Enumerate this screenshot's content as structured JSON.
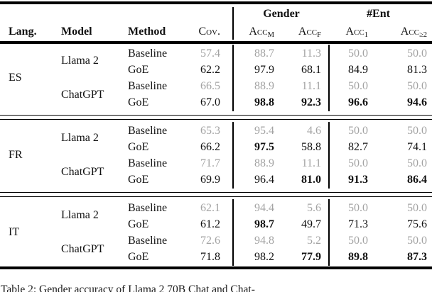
{
  "table": {
    "headers": {
      "lang": "Lang.",
      "model": "Model",
      "method": "Method",
      "cov": "Cov.",
      "group_gender": "Gender",
      "group_ent": "#Ent",
      "acc": "Acc",
      "sub_m": "M",
      "sub_f": "F",
      "sub_1": "1",
      "sub_ge2": "≥2"
    },
    "sections": [
      {
        "lang": "ES",
        "models": [
          "Llama 2",
          "ChatGPT"
        ],
        "rows": [
          {
            "method": "Baseline",
            "cov": "57.4",
            "accM": "88.7",
            "accF": "11.3",
            "acc1": "50.0",
            "acc2": "50.0"
          },
          {
            "method": "GoE",
            "cov": "62.2",
            "accM": "97.9",
            "accF": "68.1",
            "acc1": "84.9",
            "acc2": "81.3"
          },
          {
            "method": "Baseline",
            "cov": "66.5",
            "accM": "88.9",
            "accF": "11.1",
            "acc1": "50.0",
            "acc2": "50.0"
          },
          {
            "method": "GoE",
            "cov": "67.0",
            "accM": "98.8",
            "accF": "92.3",
            "acc1": "96.6",
            "acc2": "94.6"
          }
        ]
      },
      {
        "lang": "FR",
        "models": [
          "Llama 2",
          "ChatGPT"
        ],
        "rows": [
          {
            "method": "Baseline",
            "cov": "65.3",
            "accM": "95.4",
            "accF": "4.6",
            "acc1": "50.0",
            "acc2": "50.0"
          },
          {
            "method": "GoE",
            "cov": "66.2",
            "accM": "97.5",
            "accF": "58.8",
            "acc1": "82.7",
            "acc2": "74.1"
          },
          {
            "method": "Baseline",
            "cov": "71.7",
            "accM": "88.9",
            "accF": "11.1",
            "acc1": "50.0",
            "acc2": "50.0"
          },
          {
            "method": "GoE",
            "cov": "69.9",
            "accM": "96.4",
            "accF": "81.0",
            "acc1": "91.3",
            "acc2": "86.4"
          }
        ]
      },
      {
        "lang": "IT",
        "models": [
          "Llama 2",
          "ChatGPT"
        ],
        "rows": [
          {
            "method": "Baseline",
            "cov": "62.1",
            "accM": "94.4",
            "accF": "5.6",
            "acc1": "50.0",
            "acc2": "50.0"
          },
          {
            "method": "GoE",
            "cov": "61.2",
            "accM": "98.7",
            "accF": "49.7",
            "acc1": "71.3",
            "acc2": "75.6"
          },
          {
            "method": "Baseline",
            "cov": "72.6",
            "accM": "94.8",
            "accF": "5.2",
            "acc1": "50.0",
            "acc2": "50.0"
          },
          {
            "method": "GoE",
            "cov": "71.8",
            "accM": "98.2",
            "accF": "77.9",
            "acc1": "89.8",
            "acc2": "87.3"
          }
        ]
      }
    ],
    "caption": "Table 2: Gender accuracy of Llama 2 70B Chat and Chat-"
  },
  "colors": {
    "baseline_gray": "#a3a3a3",
    "text_black": "#111111",
    "rule_black": "#000000"
  }
}
